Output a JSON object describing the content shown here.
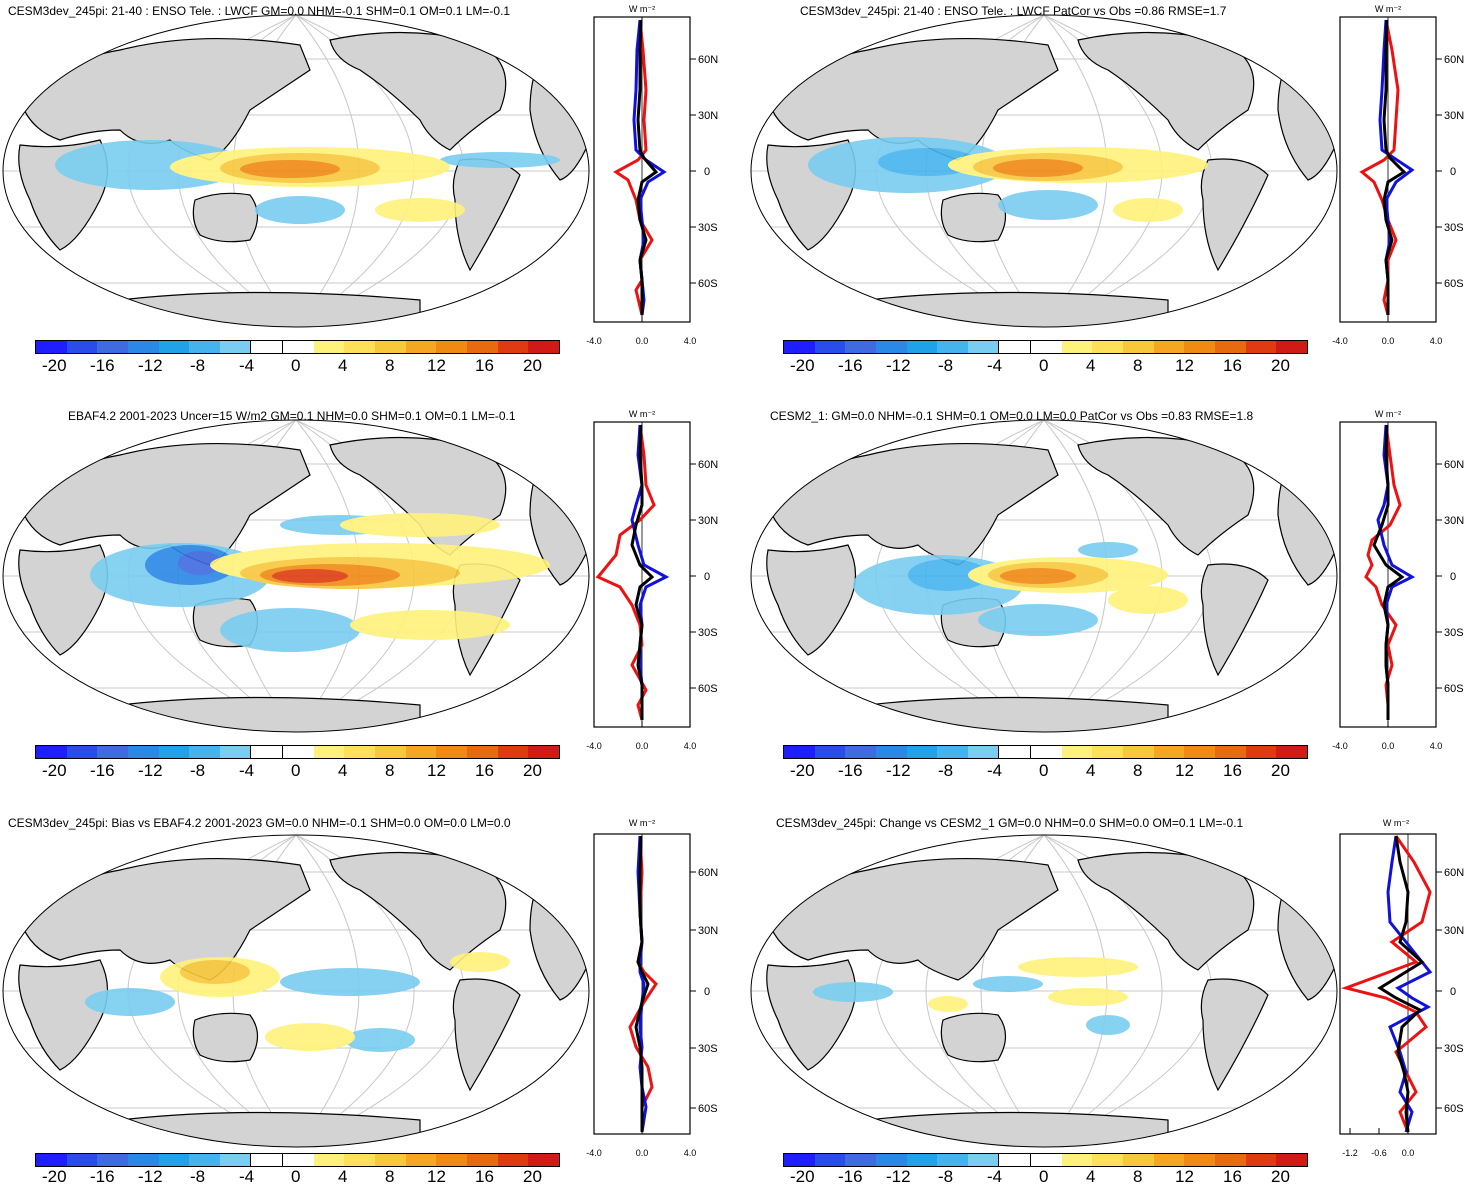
{
  "units": "W m⁻²",
  "colorbar": {
    "labels": [
      "-20",
      "-16",
      "-12",
      "-8",
      "-4",
      "0",
      "4",
      "8",
      "12",
      "16",
      "20"
    ],
    "colors": [
      "#1e1eff",
      "#2a4dea",
      "#3f6ae0",
      "#2a88e6",
      "#21a1e8",
      "#45b4ee",
      "#79cdf0",
      "#ffffff",
      "#ffffff",
      "#fff27c",
      "#ffe05a",
      "#f8c83c",
      "#f5a623",
      "#f08a14",
      "#e66a10",
      "#de3c10",
      "#d01a16"
    ]
  },
  "lat_labels": [
    "60N",
    "30N",
    "0",
    "30S",
    "60S"
  ],
  "panels": [
    {
      "id": "p1",
      "title": "CESM3dev_245pi: 21-40 : ENSO Tele. : LWCF GM=0.0 NHM=-0.1 SHM=0.1 OM=0.1 LM=-0.1",
      "profile_ticks": [
        "-4.0",
        "0.0",
        "4.0"
      ]
    },
    {
      "id": "p2",
      "title": "CESM3dev_245pi: 21-40 : ENSO Tele. : LWCF PatCor vs Obs =0.86 RMSE=1.7",
      "profile_ticks": [
        "-4.0",
        "0.0",
        "4.0"
      ]
    },
    {
      "id": "p3",
      "title": "EBAF4.2 2001-2023 Uncer=15 W/m2 GM=0.1 NHM=0.0 SHM=0.1 OM=0.1 LM=-0.1",
      "profile_ticks": [
        "-4.0",
        "0.0",
        "4.0"
      ]
    },
    {
      "id": "p4",
      "title": "CESM2_1: GM=0.0 NHM=-0.1 SHM=0.1 OM=0.0 LM=0.0 PatCor vs Obs =0.83 RMSE=1.8",
      "profile_ticks": [
        "-4.0",
        "0.0",
        "4.0"
      ]
    },
    {
      "id": "p5",
      "title": "CESM3dev_245pi: Bias vs EBAF4.2 2001-2023 GM=0.0 NHM=-0.1 SHM=0.0 OM=0.0 LM=0.0",
      "profile_ticks": [
        "-4.0",
        "0.0",
        "4.0"
      ]
    },
    {
      "id": "p6",
      "title": "CESM3dev_245pi: Change vs CESM2_1 GM=0.0 NHM=0.0 SHM=0.0 OM=0.1 LM=-0.1",
      "profile_ticks": [
        "-1.2",
        "-0.6",
        "0.0"
      ]
    }
  ]
}
